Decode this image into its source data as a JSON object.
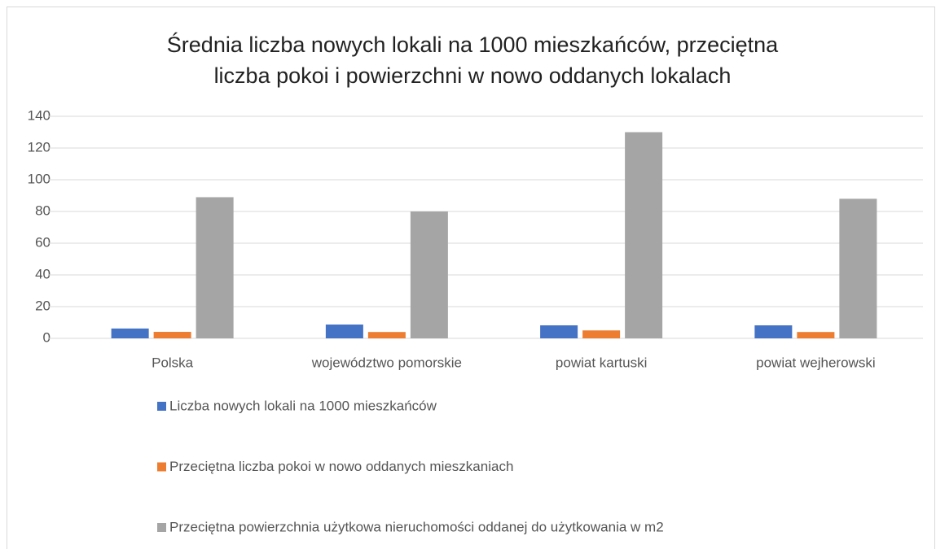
{
  "chart_data": {
    "type": "bar",
    "title": "Średnia liczba nowych lokali na 1000 mieszkańców, przeciętna liczba pokoi i powierzchni w nowo oddanych lokalach",
    "categories": [
      "Polska",
      "województwo pomorskie",
      "powiat kartuski",
      "powiat wejherowski"
    ],
    "series": [
      {
        "name": "Liczba nowych lokali na 1000 mieszkańców",
        "color": "#4472c4",
        "values": [
          6.2,
          8.7,
          8.2,
          8.2
        ]
      },
      {
        "name": "Przeciętna liczba pokoi w nowo oddanych mieszkaniach",
        "color": "#ed7d31",
        "values": [
          4.1,
          4,
          5,
          4
        ]
      },
      {
        "name": "Przeciętna powierzchnia użytkowa nieruchomości oddanej do użytkowania w m2",
        "color": "#a5a5a5",
        "values": [
          89,
          80,
          130,
          88
        ]
      }
    ],
    "ylim": [
      0,
      140
    ],
    "yticks": [
      0,
      20,
      40,
      60,
      80,
      100,
      120,
      140
    ],
    "grid": true,
    "legend": "bottom"
  }
}
